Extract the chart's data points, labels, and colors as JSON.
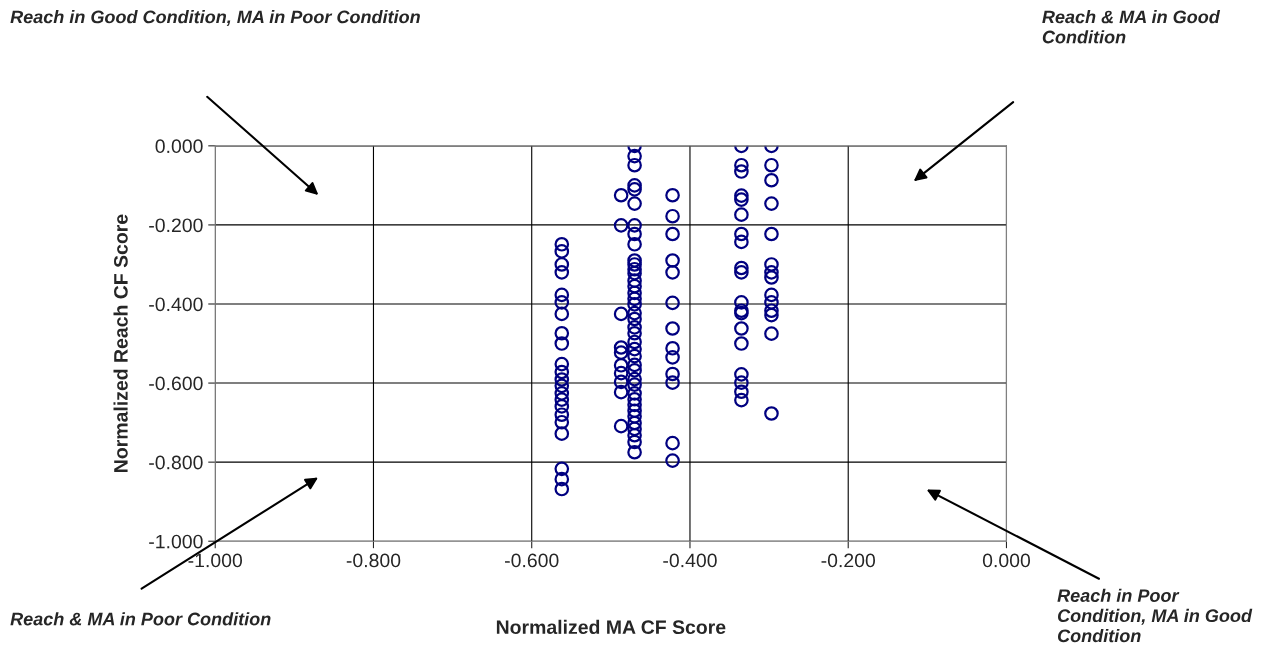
{
  "chart_data": {
    "type": "scatter",
    "xlabel": "Normalized MA CF Score",
    "ylabel": "Normalized Reach CF Score",
    "xlim": [
      -1.0,
      0.0
    ],
    "ylim": [
      -1.0,
      0.0
    ],
    "xticks": [
      {
        "value": -1.0,
        "label": "-1.000"
      },
      {
        "value": -0.8,
        "label": "-0.800"
      },
      {
        "value": -0.6,
        "label": "-0.600"
      },
      {
        "value": -0.4,
        "label": "-0.400"
      },
      {
        "value": -0.2,
        "label": "-0.200"
      },
      {
        "value": 0.0,
        "label": "0.000"
      }
    ],
    "yticks": [
      {
        "value": -1.0,
        "label": "-1.000"
      },
      {
        "value": -0.8,
        "label": "-0.800"
      },
      {
        "value": -0.6,
        "label": "-0.600"
      },
      {
        "value": -0.4,
        "label": "-0.400"
      },
      {
        "value": -0.2,
        "label": "-0.200"
      },
      {
        "value": 0.0,
        "label": "0.000"
      }
    ],
    "grid": true,
    "marker": "circle",
    "legend": false,
    "annotations": [
      "Reach in Good Condition, MA in Poor Condition",
      "Reach & MA in Good Condition",
      "Reach & MA in Poor Condition",
      "Reach in Poor Condition, MA in Good Condition"
    ],
    "series": [
      {
        "color": "#000080",
        "x": [
          -0.562,
          -0.562,
          -0.562,
          -0.562,
          -0.562,
          -0.562,
          -0.562,
          -0.562,
          -0.562,
          -0.562,
          -0.562,
          -0.562,
          -0.562,
          -0.562,
          -0.562,
          -0.562,
          -0.562,
          -0.562,
          -0.562,
          -0.562,
          -0.562,
          -0.562
        ],
        "values": [
          -0.249,
          -0.267,
          -0.3,
          -0.32,
          -0.377,
          -0.396,
          -0.425,
          -0.474,
          -0.5,
          -0.552,
          -0.572,
          -0.591,
          -0.607,
          -0.626,
          -0.642,
          -0.659,
          -0.68,
          -0.699,
          -0.728,
          -0.817,
          -0.843,
          -0.868
        ]
      },
      {
        "color": "#000080",
        "x": [
          -0.487,
          -0.487,
          -0.487,
          -0.487,
          -0.487,
          -0.487,
          -0.487,
          -0.487,
          -0.487,
          -0.487
        ],
        "values": [
          -0.125,
          -0.201,
          -0.425,
          -0.51,
          -0.523,
          -0.555,
          -0.575,
          -0.597,
          -0.623,
          -0.709
        ]
      },
      {
        "color": "#000080",
        "x": [
          -0.47,
          -0.47,
          -0.47,
          -0.47,
          -0.47,
          -0.47,
          -0.47,
          -0.47,
          -0.47,
          -0.47,
          -0.47,
          -0.47,
          -0.47,
          -0.47,
          -0.47,
          -0.47,
          -0.47,
          -0.47,
          -0.47,
          -0.47,
          -0.47,
          -0.47,
          -0.47,
          -0.47,
          -0.47,
          -0.47,
          -0.47,
          -0.47,
          -0.47,
          -0.47,
          -0.47,
          -0.47,
          -0.47,
          -0.47,
          -0.47,
          -0.47,
          -0.47,
          -0.47,
          -0.47
        ],
        "values": [
          0.0,
          -0.026,
          -0.049,
          -0.1,
          -0.11,
          -0.146,
          -0.201,
          -0.223,
          -0.249,
          -0.29,
          -0.3,
          -0.312,
          -0.322,
          -0.341,
          -0.355,
          -0.372,
          -0.387,
          -0.401,
          -0.423,
          -0.438,
          -0.459,
          -0.474,
          -0.496,
          -0.514,
          -0.532,
          -0.554,
          -0.568,
          -0.59,
          -0.604,
          -0.626,
          -0.641,
          -0.655,
          -0.67,
          -0.684,
          -0.701,
          -0.716,
          -0.732,
          -0.749,
          -0.775
        ]
      },
      {
        "color": "#000080",
        "x": [
          -0.422,
          -0.422,
          -0.422,
          -0.422,
          -0.422,
          -0.422,
          -0.422,
          -0.422,
          -0.422,
          -0.422,
          -0.422,
          -0.422,
          -0.422
        ],
        "values": [
          -0.125,
          -0.178,
          -0.223,
          -0.29,
          -0.32,
          -0.397,
          -0.462,
          -0.512,
          -0.535,
          -0.577,
          -0.599,
          -0.752,
          -0.796
        ]
      },
      {
        "color": "#000080",
        "x": [
          -0.335,
          -0.335,
          -0.335,
          -0.335,
          -0.335,
          -0.335,
          -0.335,
          -0.335,
          -0.335,
          -0.335,
          -0.335,
          -0.335,
          -0.335,
          -0.335,
          -0.335,
          -0.335,
          -0.335,
          -0.335,
          -0.335
        ],
        "values": [
          0.0,
          -0.049,
          -0.065,
          -0.126,
          -0.136,
          -0.174,
          -0.223,
          -0.243,
          -0.309,
          -0.32,
          -0.396,
          -0.417,
          -0.423,
          -0.462,
          -0.5,
          -0.578,
          -0.599,
          -0.622,
          -0.643
        ]
      },
      {
        "color": "#000080",
        "x": [
          -0.297,
          -0.297,
          -0.297,
          -0.297,
          -0.297,
          -0.297,
          -0.297,
          -0.297,
          -0.297,
          -0.297,
          -0.297,
          -0.297,
          -0.297,
          -0.297
        ],
        "values": [
          0.0,
          -0.049,
          -0.087,
          -0.146,
          -0.223,
          -0.3,
          -0.32,
          -0.333,
          -0.377,
          -0.396,
          -0.417,
          -0.428,
          -0.475,
          -0.677
        ]
      }
    ]
  }
}
